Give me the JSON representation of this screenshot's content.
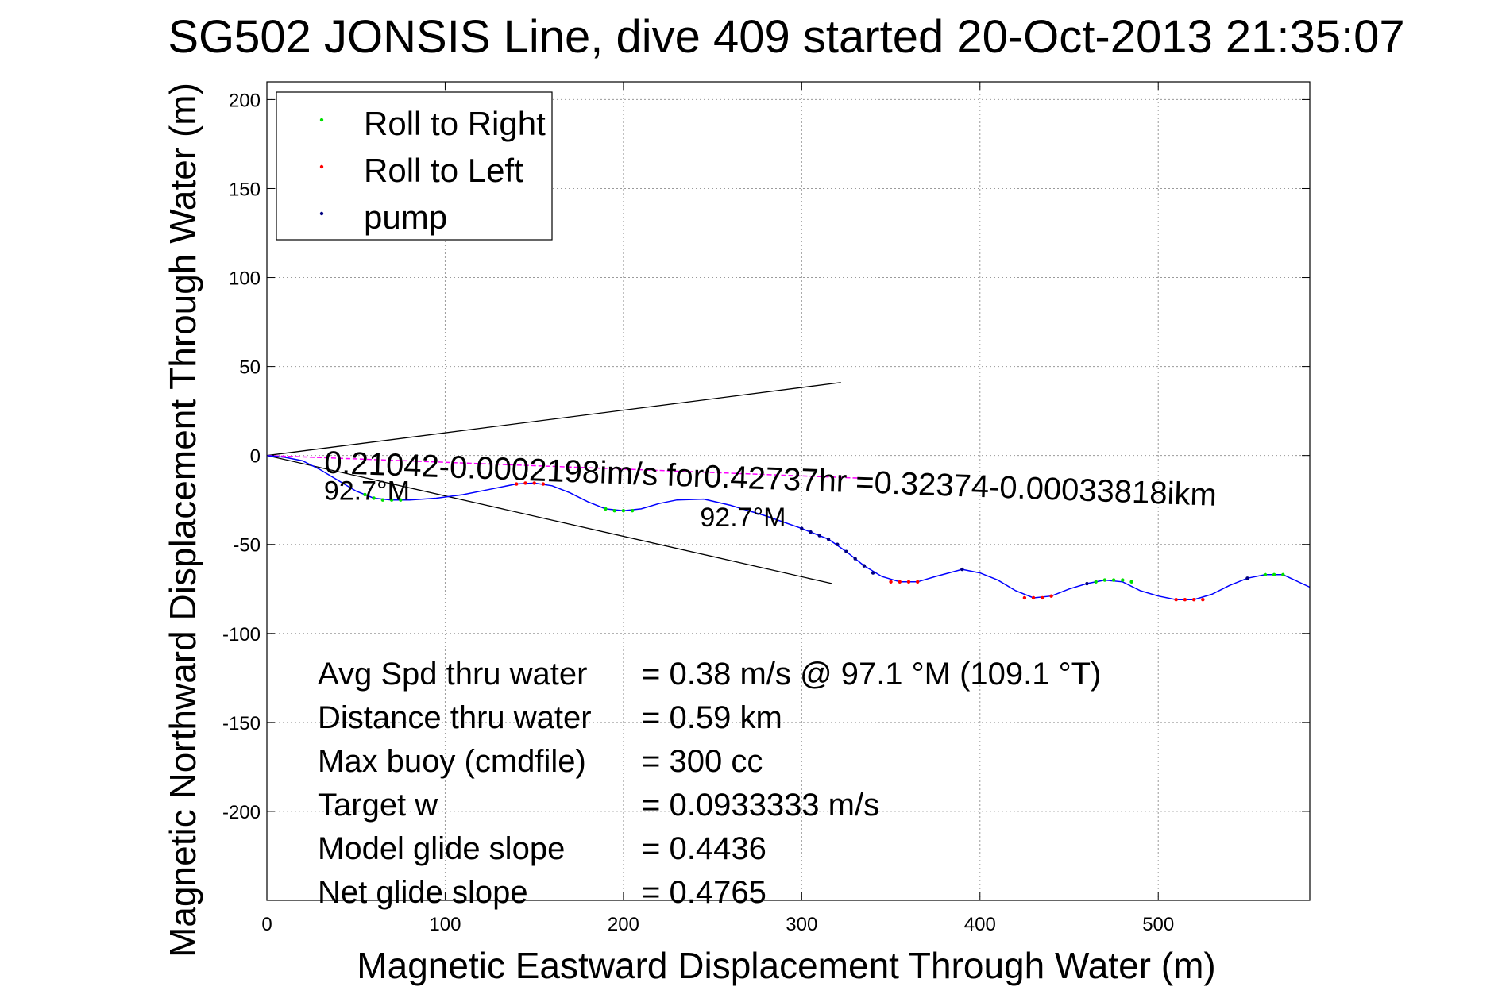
{
  "chart_data": {
    "type": "line",
    "title": "SG502 JONSIS Line, dive 409 started 20-Oct-2013 21:35:07",
    "xlabel": "Magnetic Eastward Displacement Through Water (m)",
    "ylabel": "Magnetic Northward Displacement Through Water (m)",
    "xlim": [
      0,
      585
    ],
    "ylim": [
      -250,
      210
    ],
    "xticks": [
      0,
      100,
      200,
      300,
      400,
      500
    ],
    "yticks": [
      200,
      150,
      100,
      50,
      0,
      -50,
      -100,
      -150,
      -200
    ],
    "grid": true,
    "legend": {
      "placement": "top-left",
      "entries": [
        {
          "label": "Roll to Right",
          "color": "#00e000"
        },
        {
          "label": "Roll to Left",
          "color": "#ff0000"
        },
        {
          "label": "pump",
          "color": "#000080"
        }
      ]
    },
    "series": [
      {
        "name": "track",
        "color": "#0000ff",
        "x": [
          0,
          10,
          20,
          30,
          40,
          50,
          60,
          70,
          80,
          95,
          110,
          125,
          140,
          150,
          160,
          170,
          180,
          190,
          200,
          210,
          220,
          230,
          245,
          260,
          280,
          300,
          315,
          325,
          335,
          345,
          355,
          365,
          375,
          390,
          400,
          410,
          420,
          430,
          440,
          450,
          460,
          470,
          480,
          490,
          500,
          510,
          520,
          530,
          540,
          550,
          560,
          570,
          585
        ],
        "y": [
          0,
          -1,
          -3,
          -8,
          -14,
          -20,
          -24,
          -25,
          -25,
          -24,
          -22,
          -19,
          -16,
          -15.5,
          -17,
          -21,
          -26,
          -30,
          -31,
          -30,
          -27,
          -25,
          -24.5,
          -28,
          -34,
          -41,
          -47,
          -54,
          -62,
          -68,
          -71,
          -71,
          -68,
          -64,
          -66,
          -70,
          -76,
          -80,
          -79,
          -75,
          -72,
          -70,
          -71,
          -76,
          -79,
          -81,
          -81,
          -78,
          -73,
          -69,
          -67,
          -67,
          -74
        ]
      },
      {
        "name": "roll to right",
        "color": "#00e000",
        "x": [
          55,
          60,
          65,
          70,
          75,
          190,
          195,
          200,
          205,
          465,
          470,
          475,
          480,
          485,
          560,
          565,
          570
        ],
        "y": [
          -22,
          -24,
          -25,
          -25,
          -25,
          -30,
          -31,
          -31,
          -31,
          -71,
          -70,
          -70,
          -70,
          -71,
          -67,
          -67,
          -67
        ]
      },
      {
        "name": "roll to left",
        "color": "#ff0000",
        "x": [
          140,
          145,
          150,
          155,
          350,
          355,
          360,
          365,
          425,
          430,
          435,
          440,
          510,
          515,
          520,
          525
        ],
        "y": [
          -16,
          -15.5,
          -15.5,
          -16,
          -71,
          -71,
          -71,
          -71,
          -80,
          -80,
          -80,
          -79,
          -81,
          -81,
          -81,
          -81
        ]
      },
      {
        "name": "pump",
        "color": "#000080",
        "x": [
          300,
          305,
          310,
          315,
          320,
          325,
          330,
          335,
          340,
          390,
          460,
          550
        ],
        "y": [
          -41,
          -43,
          -45,
          -47,
          -50,
          -54,
          -58,
          -62,
          -66,
          -64,
          -72,
          -69
        ]
      }
    ],
    "lines": [
      {
        "name": "upper-bound",
        "color": "#000000",
        "x": [
          0,
          322
        ],
        "y": [
          0,
          41
        ]
      },
      {
        "name": "lower-bound",
        "color": "#000000",
        "x": [
          0,
          317
        ],
        "y": [
          0,
          -72
        ]
      },
      {
        "name": "current-vector",
        "color": "#ff00ff",
        "x": [
          0,
          340
        ],
        "y": [
          0,
          -13
        ]
      }
    ],
    "annotations": [
      {
        "text": "0.21042-0.0002198im/s for0.42737hr =0.32374-0.00033818ikm",
        "x": 32,
        "y": 0,
        "rotation": -2.1
      },
      {
        "text": "92.7°M",
        "x": 32,
        "y": -15
      },
      {
        "text": "92.7°M",
        "x": 243,
        "y": -30
      }
    ],
    "stats": [
      {
        "label": "Avg Spd thru water",
        "value": "=  0.38 m/s @  97.1 °M (109.1 °T)"
      },
      {
        "label": "Distance thru water",
        "value": "=  0.59 km"
      },
      {
        "label": "Max buoy (cmdfile)",
        "value": "= 300 cc"
      },
      {
        "label": "Target w",
        "value": "= 0.0933333 m/s"
      },
      {
        "label": "Model glide slope",
        "value": "= 0.4436"
      },
      {
        "label": "Net glide slope",
        "value": "= 0.4765"
      }
    ]
  }
}
